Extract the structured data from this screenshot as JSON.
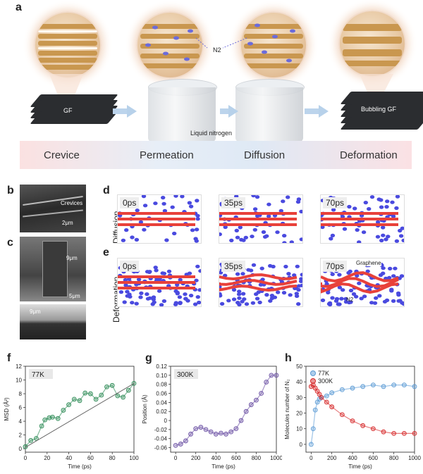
{
  "panels": {
    "a": "a",
    "b": "b",
    "c": "c",
    "d": "d",
    "e": "e",
    "f": "f",
    "g": "g",
    "h": "h"
  },
  "panel_a": {
    "gf_label": "GF",
    "n2_label": "N2",
    "liquid_label": "Liquid nitrogen",
    "bubbling_label": "Bubbling GF",
    "stages": [
      "Crevice",
      "Permeation",
      "Diffusion",
      "Deformation"
    ]
  },
  "panel_b": {
    "crevices": "Crevices",
    "scale": "2μm"
  },
  "panel_c": {
    "height1": "9μm",
    "scale": "5μm",
    "height2": "9μm"
  },
  "panel_d": {
    "row_label": "Diffusion",
    "times": [
      "0ps",
      "35ps",
      "70ps"
    ]
  },
  "panel_e": {
    "row_label": "Deformation",
    "times": [
      "0ps",
      "35ps",
      "70ps"
    ],
    "graphene": "Graphene",
    "n2": "N2"
  },
  "colors": {
    "green": "#2e8b57",
    "purple": "#6a4fa3",
    "blue": "#5b9bd5",
    "red": "#d62728",
    "n2": "#4a4adf",
    "graphene": "#e8413a"
  },
  "chart_data": [
    {
      "type": "scatter",
      "panel": "f",
      "badge": "77K",
      "xlabel": "Time (ps)",
      "ylabel": "MSD (Å²)",
      "xlim": [
        0,
        100
      ],
      "ylim": [
        -0.5,
        12
      ],
      "xticks": [
        0,
        20,
        40,
        60,
        80,
        100
      ],
      "yticks": [
        0,
        2,
        4,
        6,
        8,
        10,
        12
      ],
      "series": [
        {
          "name": "77K",
          "x": [
            0,
            5,
            10,
            15,
            18,
            22,
            25,
            30,
            35,
            40,
            45,
            50,
            55,
            60,
            65,
            70,
            75,
            80,
            85,
            90,
            95,
            100
          ],
          "y": [
            0.3,
            1.2,
            1.5,
            3.3,
            4.2,
            4.5,
            4.6,
            4.4,
            5.6,
            6.4,
            7.2,
            7.0,
            8.1,
            8.0,
            7.2,
            7.8,
            9.0,
            9.2,
            7.7,
            7.5,
            8.5,
            9.5
          ]
        }
      ],
      "fit": {
        "x": [
          0,
          100
        ],
        "y": [
          0.2,
          9.5
        ]
      }
    },
    {
      "type": "scatter",
      "panel": "g",
      "badge": "300K",
      "xlabel": "Time (ps)",
      "ylabel": "Position (Å)",
      "xlim": [
        -50,
        1000
      ],
      "ylim": [
        -0.07,
        0.12
      ],
      "xticks": [
        0,
        200,
        400,
        600,
        800,
        1000
      ],
      "yticks": [
        -0.06,
        -0.04,
        -0.02,
        0.0,
        0.02,
        0.04,
        0.06,
        0.08,
        0.1,
        0.12
      ],
      "series": [
        {
          "name": "300K",
          "x": [
            0,
            50,
            100,
            150,
            200,
            250,
            300,
            350,
            400,
            450,
            500,
            550,
            600,
            650,
            700,
            750,
            800,
            850,
            900,
            950,
            1000
          ],
          "y": [
            -0.055,
            -0.052,
            -0.045,
            -0.03,
            -0.018,
            -0.015,
            -0.02,
            -0.025,
            -0.03,
            -0.028,
            -0.03,
            -0.025,
            -0.018,
            0.0,
            0.02,
            0.035,
            0.045,
            0.06,
            0.085,
            0.1,
            0.1
          ]
        }
      ]
    },
    {
      "type": "scatter",
      "panel": "h",
      "xlabel": "Time (ps)",
      "ylabel": "Molecules number of N₂",
      "xlim": [
        -50,
        1000
      ],
      "ylim": [
        -5,
        50
      ],
      "xticks": [
        0,
        200,
        400,
        600,
        800,
        1000
      ],
      "yticks": [
        0,
        10,
        20,
        30,
        40,
        50
      ],
      "series": [
        {
          "name": "77K",
          "x": [
            0,
            20,
            40,
            60,
            80,
            100,
            150,
            200,
            300,
            400,
            500,
            600,
            700,
            800,
            900,
            1000
          ],
          "y": [
            0,
            10,
            22,
            27,
            29,
            30,
            31,
            33,
            35,
            36,
            37,
            38,
            37,
            38,
            38,
            37
          ]
        },
        {
          "name": "300K",
          "x": [
            0,
            20,
            40,
            60,
            80,
            100,
            150,
            200,
            300,
            400,
            500,
            600,
            700,
            800,
            900,
            1000
          ],
          "y": [
            37,
            38,
            36,
            34,
            32,
            30,
            27,
            24,
            19,
            15,
            12,
            10,
            8,
            7,
            7,
            7
          ]
        }
      ]
    }
  ]
}
